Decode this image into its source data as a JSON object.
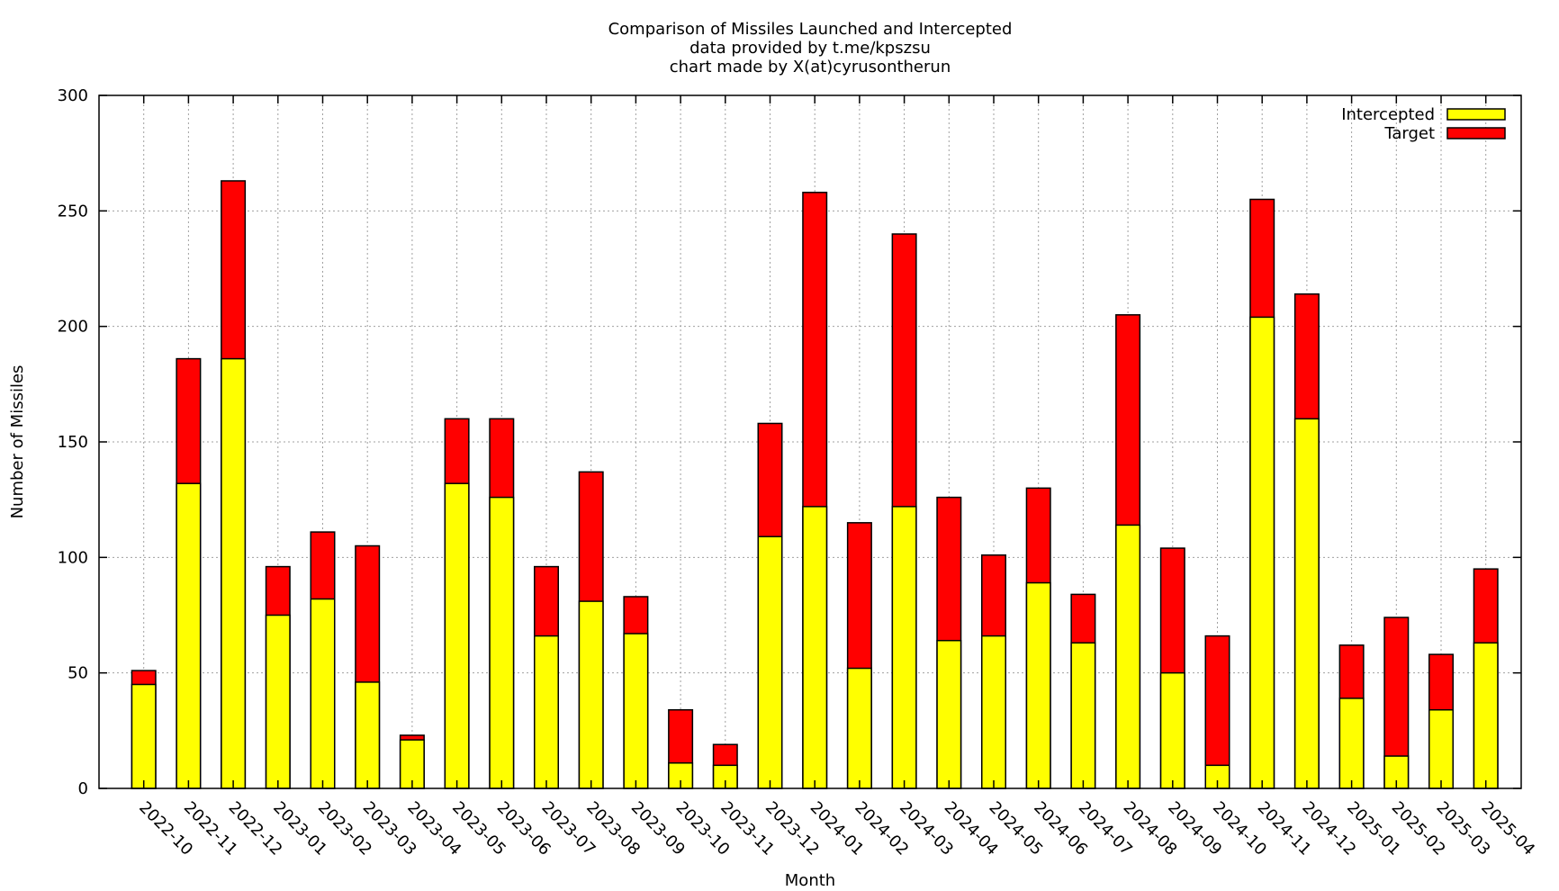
{
  "chart_data": {
    "type": "bar",
    "stacked": "overlay",
    "title": "Comparison of Missiles Launched and Intercepted",
    "subtitle_lines": [
      "data provided by t.me/kpszsu",
      "chart made by X(at)cyrusontherun"
    ],
    "xlabel": "Month",
    "ylabel": "Number of Missiles",
    "ylim": [
      0,
      300
    ],
    "yticks": [
      0,
      50,
      100,
      150,
      200,
      250,
      300
    ],
    "grid": true,
    "legend_position": "top-right",
    "categories": [
      "2022-10",
      "2022-11",
      "2022-12",
      "2023-01",
      "2023-02",
      "2023-03",
      "2023-04",
      "2023-05",
      "2023-06",
      "2023-07",
      "2023-08",
      "2023-09",
      "2023-10",
      "2023-11",
      "2023-12",
      "2024-01",
      "2024-02",
      "2024-03",
      "2024-04",
      "2024-05",
      "2024-06",
      "2024-07",
      "2024-08",
      "2024-09",
      "2024-10",
      "2024-11",
      "2024-12",
      "2025-01",
      "2025-02",
      "2025-03",
      "2025-04"
    ],
    "series": [
      {
        "name": "Intercepted",
        "color": "#ffff00",
        "values": [
          45,
          132,
          186,
          75,
          82,
          46,
          21,
          132,
          126,
          66,
          81,
          67,
          11,
          10,
          109,
          122,
          52,
          122,
          64,
          66,
          89,
          63,
          114,
          50,
          10,
          204,
          160,
          39,
          14,
          34,
          63
        ]
      },
      {
        "name": "Target",
        "color": "#ff0000",
        "values": [
          51,
          186,
          263,
          96,
          111,
          105,
          23,
          160,
          160,
          96,
          137,
          83,
          34,
          19,
          158,
          258,
          115,
          240,
          126,
          101,
          130,
          84,
          205,
          104,
          66,
          255,
          214,
          62,
          74,
          58,
          95
        ]
      }
    ]
  }
}
